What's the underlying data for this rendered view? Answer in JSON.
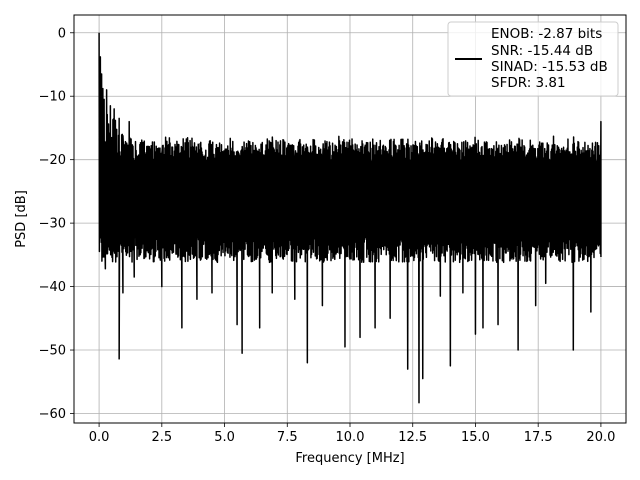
{
  "chart_data": {
    "type": "line",
    "title": "",
    "xlabel": "Frequency [MHz]",
    "ylabel": "PSD [dB]",
    "xlim": [
      -1.0,
      21.0
    ],
    "ylim": [
      -61.5,
      2.8
    ],
    "xticks": [
      0.0,
      2.5,
      5.0,
      7.5,
      10.0,
      12.5,
      15.0,
      17.5,
      20.0
    ],
    "xtick_labels": [
      "0.0",
      "2.5",
      "5.0",
      "7.5",
      "10.0",
      "12.5",
      "15.0",
      "17.5",
      "20.0"
    ],
    "yticks": [
      0,
      -10,
      -20,
      -30,
      -40,
      -50,
      -60
    ],
    "ytick_labels": [
      "0",
      "−10",
      "−20",
      "−30",
      "−40",
      "−50",
      "−60"
    ],
    "grid": true,
    "legend_position": "top-right",
    "line_color": "#000000",
    "series": [
      {
        "name": "ENOB: -2.87 bits\nSNR: -15.44 dB\nSINAD: -15.53 dB\nSFDR: 3.81",
        "legend_lines": [
          "ENOB: -2.87 bits",
          "SNR: -15.44 dB",
          "SINAD: -15.53 dB",
          "SFDR: 3.81"
        ],
        "description": "dense noise floor spectrum",
        "x_range": [
          0.0,
          20.0
        ],
        "points": 1600,
        "band_upper": -17,
        "band_lower": -35,
        "peaks": [
          {
            "x": 0.0,
            "y": 0.0
          },
          {
            "x": 0.05,
            "y": -3.8
          },
          {
            "x": 0.1,
            "y": -6.5
          },
          {
            "x": 0.15,
            "y": -8.8
          },
          {
            "x": 0.2,
            "y": -10.5
          },
          {
            "x": 0.3,
            "y": -9.0
          },
          {
            "x": 0.45,
            "y": -11.5
          },
          {
            "x": 0.6,
            "y": -12.0
          },
          {
            "x": 0.8,
            "y": -13.5
          },
          {
            "x": 1.2,
            "y": -14.0
          },
          {
            "x": 20.0,
            "y": -14.0
          }
        ],
        "dips": [
          {
            "x": 0.03,
            "y": -28.5
          },
          {
            "x": 0.25,
            "y": -37.2
          },
          {
            "x": 0.8,
            "y": -51.4
          },
          {
            "x": 0.95,
            "y": -41.0
          },
          {
            "x": 1.4,
            "y": -38.5
          },
          {
            "x": 2.5,
            "y": -40.0
          },
          {
            "x": 3.3,
            "y": -46.5
          },
          {
            "x": 3.9,
            "y": -42.0
          },
          {
            "x": 4.5,
            "y": -41.0
          },
          {
            "x": 5.5,
            "y": -46.0
          },
          {
            "x": 5.7,
            "y": -50.5
          },
          {
            "x": 6.4,
            "y": -46.5
          },
          {
            "x": 6.9,
            "y": -41.0
          },
          {
            "x": 7.8,
            "y": -42.0
          },
          {
            "x": 8.3,
            "y": -52.0
          },
          {
            "x": 8.9,
            "y": -43.0
          },
          {
            "x": 9.8,
            "y": -49.5
          },
          {
            "x": 10.4,
            "y": -48.0
          },
          {
            "x": 11.0,
            "y": -46.5
          },
          {
            "x": 11.6,
            "y": -45.0
          },
          {
            "x": 12.3,
            "y": -53.0
          },
          {
            "x": 12.75,
            "y": -58.3
          },
          {
            "x": 12.9,
            "y": -54.5
          },
          {
            "x": 13.6,
            "y": -41.5
          },
          {
            "x": 14.0,
            "y": -52.5
          },
          {
            "x": 14.5,
            "y": -41.0
          },
          {
            "x": 15.0,
            "y": -47.5
          },
          {
            "x": 15.3,
            "y": -46.5
          },
          {
            "x": 15.9,
            "y": -46.0
          },
          {
            "x": 16.7,
            "y": -50.0
          },
          {
            "x": 17.4,
            "y": -43.0
          },
          {
            "x": 17.8,
            "y": -39.5
          },
          {
            "x": 18.9,
            "y": -50.0
          },
          {
            "x": 19.6,
            "y": -44.0
          }
        ]
      }
    ]
  }
}
